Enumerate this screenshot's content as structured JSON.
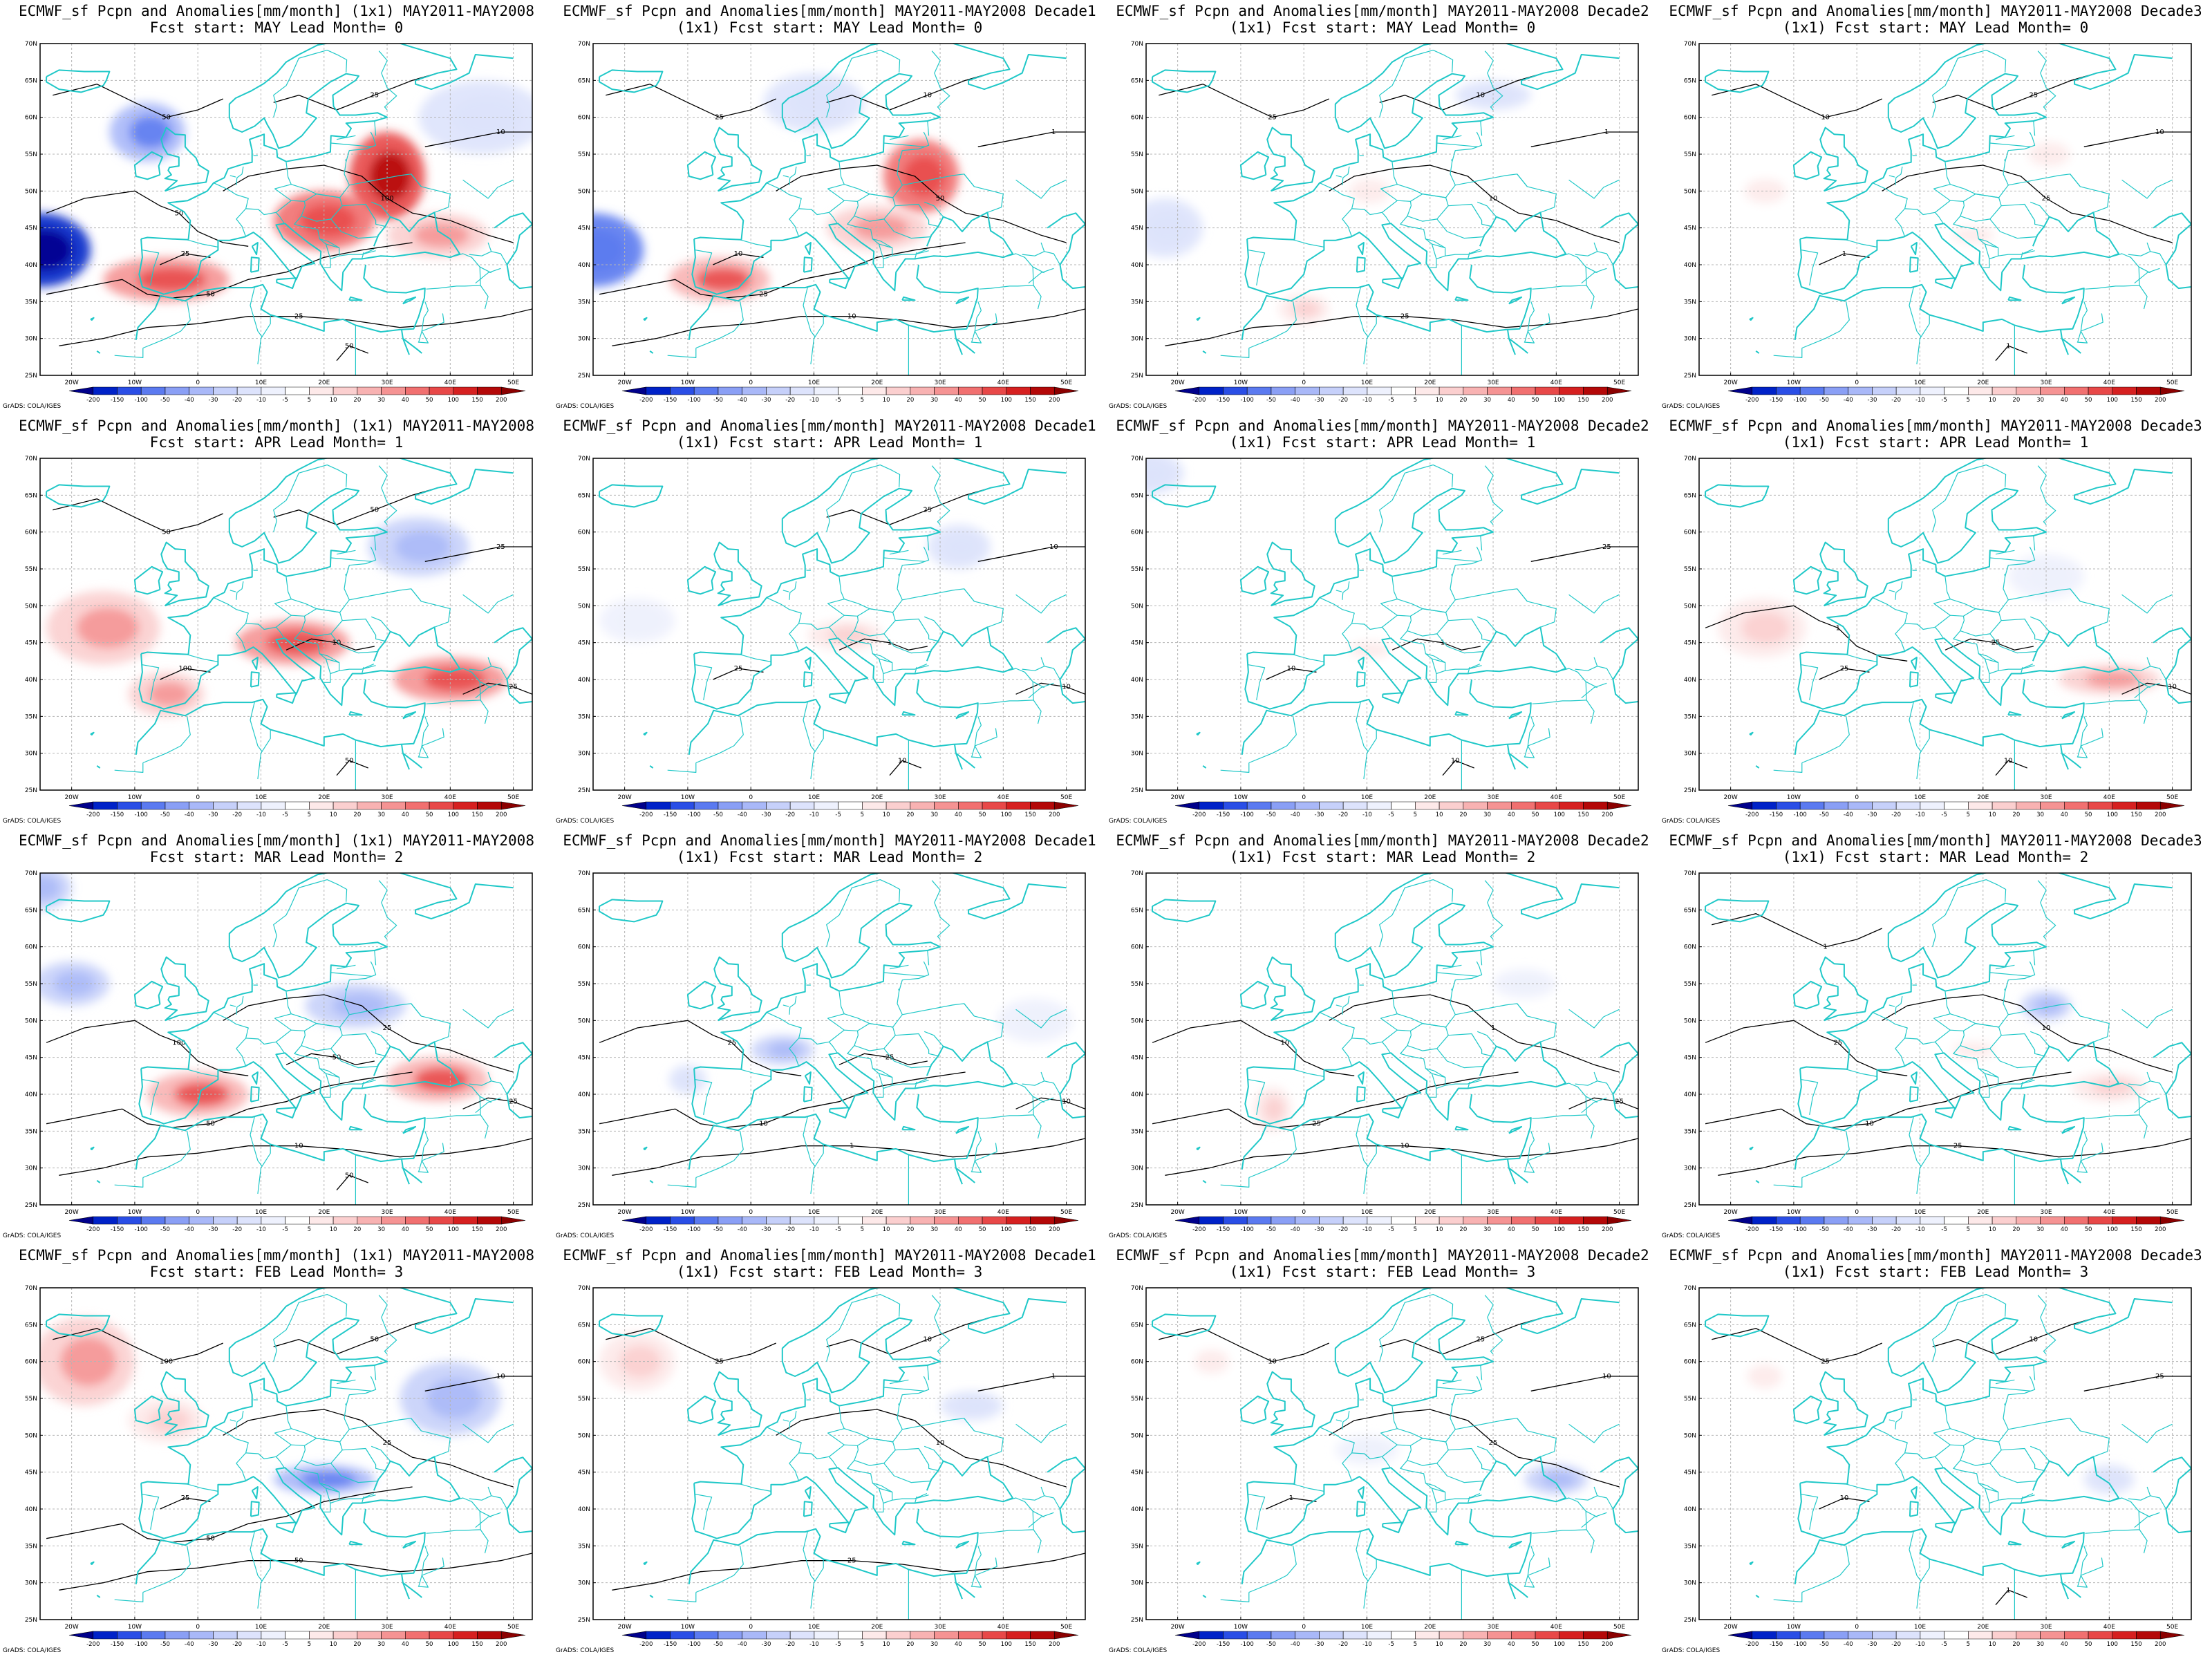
{
  "colorbar": {
    "labels": [
      "-200",
      "-150",
      "-100",
      "-50",
      "-40",
      "-30",
      "-20",
      "-10",
      "-5",
      "5",
      "10",
      "20",
      "30",
      "40",
      "50",
      "100",
      "150",
      "200"
    ],
    "colors": [
      "#00008b",
      "#0022c8",
      "#2a4ee6",
      "#5b7af0",
      "#8a9ff5",
      "#a9b8f8",
      "#c6d0fa",
      "#dde3fc",
      "#eef1fd",
      "#ffffff",
      "#fde9e9",
      "#fbcfcf",
      "#f8b2b2",
      "#f59393",
      "#f17070",
      "#e84848",
      "#d62020",
      "#b40808",
      "#8b0000"
    ]
  },
  "axes": {
    "lat_labels": [
      "70N",
      "65N",
      "60N",
      "55N",
      "50N",
      "45N",
      "40N",
      "35N",
      "30N",
      "25N"
    ],
    "lon_labels": [
      "20W",
      "10W",
      "0",
      "10E",
      "20E",
      "30E",
      "40E",
      "50E"
    ]
  },
  "credit": "GrADS: COLA/IGES",
  "colors": {
    "coast": "#20c8c8",
    "contour": "#000000",
    "grid": "#b4b4b4"
  },
  "panels": [
    {
      "line1": "ECMWF_sf Pcpn and Anomalies[mm/month] (1x1) MAY2011-MAY2008",
      "line2": "Fcst start: MAY  Lead Month= 0",
      "contours": [
        "50",
        "50",
        "25",
        "100",
        "50",
        "25",
        "10",
        "25",
        "50"
      ],
      "blobs": [
        {
          "lon": -25,
          "lat": 42,
          "rx": 8,
          "ry": 5,
          "v": -150
        },
        {
          "lon": -8,
          "lat": 58,
          "rx": 6,
          "ry": 4,
          "v": -30
        },
        {
          "lon": 30,
          "lat": 52,
          "rx": 6,
          "ry": 6,
          "v": 100
        },
        {
          "lon": 20,
          "lat": 46,
          "rx": 8,
          "ry": 4,
          "v": 50
        },
        {
          "lon": -5,
          "lat": 38,
          "rx": 10,
          "ry": 3,
          "v": 40
        },
        {
          "lon": 38,
          "lat": 44,
          "rx": 8,
          "ry": 3,
          "v": 20
        },
        {
          "lon": 45,
          "lat": 60,
          "rx": 10,
          "ry": 5,
          "v": -10
        }
      ]
    },
    {
      "line1": "ECMWF_sf Pcpn and Anomalies[mm/month] MAY2011-MAY2008 Decade1",
      "line2": "(1x1) Fcst start: MAY  Lead Month= 0",
      "contours": [
        "25",
        "10",
        "50",
        "25",
        "10",
        "1",
        "10"
      ],
      "blobs": [
        {
          "lon": -25,
          "lat": 42,
          "rx": 8,
          "ry": 5,
          "v": -50
        },
        {
          "lon": 27,
          "lat": 52,
          "rx": 6,
          "ry": 5,
          "v": 50
        },
        {
          "lon": -5,
          "lat": 38,
          "rx": 8,
          "ry": 3,
          "v": 30
        },
        {
          "lon": 20,
          "lat": 45,
          "rx": 8,
          "ry": 3,
          "v": 20
        },
        {
          "lon": 10,
          "lat": 62,
          "rx": 8,
          "ry": 4,
          "v": -10
        }
      ]
    },
    {
      "line1": "ECMWF_sf Pcpn and Anomalies[mm/month] MAY2011-MAY2008 Decade2",
      "line2": "(1x1) Fcst start: MAY  Lead Month= 0",
      "contours": [
        "25",
        "10",
        "25",
        "10",
        "1"
      ],
      "blobs": [
        {
          "lon": -22,
          "lat": 45,
          "rx": 6,
          "ry": 4,
          "v": -10
        },
        {
          "lon": 30,
          "lat": 63,
          "rx": 6,
          "ry": 2,
          "v": -10
        },
        {
          "lon": 0,
          "lat": 34,
          "rx": 4,
          "ry": 2,
          "v": 10
        },
        {
          "lon": 10,
          "lat": 50,
          "rx": 6,
          "ry": 3,
          "v": 5
        }
      ]
    },
    {
      "line1": "ECMWF_sf Pcpn and Anomalies[mm/month] MAY2011-MAY2008 Decade3",
      "line2": "(1x1) Fcst start: MAY  Lead Month= 0",
      "contours": [
        "25",
        "10",
        "25",
        "10",
        "1",
        "1"
      ],
      "blobs": [
        {
          "lon": -15,
          "lat": 50,
          "rx": 6,
          "ry": 3,
          "v": 5
        },
        {
          "lon": 30,
          "lat": 55,
          "rx": 6,
          "ry": 3,
          "v": 5
        },
        {
          "lon": 18,
          "lat": 44,
          "rx": 6,
          "ry": 2,
          "v": 5
        }
      ]
    },
    {
      "line1": "ECMWF_sf Pcpn and Anomalies[mm/month] (1x1) MAY2011-MAY2008",
      "line2": "Fcst start: APR  Lead Month= 1",
      "contours": [
        "50",
        "50",
        "25",
        "100",
        "50",
        "10",
        "25"
      ],
      "blobs": [
        {
          "lon": -15,
          "lat": 47,
          "rx": 9,
          "ry": 5,
          "v": 20
        },
        {
          "lon": 15,
          "lat": 45,
          "rx": 9,
          "ry": 3,
          "v": 40
        },
        {
          "lon": 40,
          "lat": 40,
          "rx": 9,
          "ry": 3,
          "v": 40
        },
        {
          "lon": 35,
          "lat": 58,
          "rx": 8,
          "ry": 4,
          "v": -20
        },
        {
          "lon": -5,
          "lat": 38,
          "rx": 6,
          "ry": 3,
          "v": 20
        }
      ]
    },
    {
      "line1": "ECMWF_sf Pcpn and Anomalies[mm/month] MAY2011-MAY2008 Decade1",
      "line2": "(1x1) Fcst start: APR  Lead Month= 1",
      "contours": [
        "25",
        "10",
        "25",
        "10",
        "1",
        "10"
      ],
      "blobs": [
        {
          "lon": -18,
          "lat": 48,
          "rx": 6,
          "ry": 3,
          "v": -5
        },
        {
          "lon": 33,
          "lat": 58,
          "rx": 5,
          "ry": 3,
          "v": -10
        },
        {
          "lon": 15,
          "lat": 46,
          "rx": 6,
          "ry": 2,
          "v": 10
        }
      ]
    },
    {
      "line1": "ECMWF_sf Pcpn and Anomalies[mm/month] MAY2011-MAY2008 Decade2",
      "line2": "(1x1) Fcst start: APR  Lead Month= 1",
      "contours": [
        "25",
        "10",
        "10",
        "1"
      ],
      "blobs": [
        {
          "lon": -25,
          "lat": 68,
          "rx": 6,
          "ry": 3,
          "v": -10
        },
        {
          "lon": 10,
          "lat": 44,
          "rx": 6,
          "ry": 2,
          "v": 5
        }
      ]
    },
    {
      "line1": "ECMWF_sf Pcpn and Anomalies[mm/month] MAY2011-MAY2008 Decade3",
      "line2": "(1x1) Fcst start: APR  Lead Month= 1",
      "contours": [
        "25",
        "10",
        "25",
        "10",
        "1"
      ],
      "blobs": [
        {
          "lon": -15,
          "lat": 47,
          "rx": 7,
          "ry": 4,
          "v": 10
        },
        {
          "lon": 40,
          "lat": 40,
          "rx": 8,
          "ry": 2,
          "v": 20
        },
        {
          "lon": 30,
          "lat": 54,
          "rx": 6,
          "ry": 3,
          "v": -5
        }
      ]
    },
    {
      "line1": "ECMWF_sf Pcpn and Anomalies[mm/month] (1x1) MAY2011-MAY2008",
      "line2": "Fcst start: MAR  Lead Month= 2",
      "contours": [
        "50",
        "50",
        "25",
        "100",
        "50",
        "10",
        "25"
      ],
      "blobs": [
        {
          "lon": -20,
          "lat": 55,
          "rx": 6,
          "ry": 3,
          "v": -20
        },
        {
          "lon": 25,
          "lat": 52,
          "rx": 8,
          "ry": 3,
          "v": -20
        },
        {
          "lon": 0,
          "lat": 40,
          "rx": 8,
          "ry": 3,
          "v": 30
        },
        {
          "lon": 38,
          "lat": 42,
          "rx": 8,
          "ry": 3,
          "v": 30
        },
        {
          "lon": -25,
          "lat": 68,
          "rx": 5,
          "ry": 3,
          "v": -20
        }
      ]
    },
    {
      "line1": "ECMWF_sf Pcpn and Anomalies[mm/month] MAY2011-MAY2008 Decade1",
      "line2": "(1x1) Fcst start: MAR  Lead Month= 2",
      "contours": [
        "25",
        "10",
        "25",
        "10",
        "1"
      ],
      "blobs": [
        {
          "lon": 5,
          "lat": 46,
          "rx": 5,
          "ry": 2,
          "v": -20
        },
        {
          "lon": -10,
          "lat": 42,
          "rx": 3,
          "ry": 2,
          "v": -10
        },
        {
          "lon": 45,
          "lat": 50,
          "rx": 6,
          "ry": 3,
          "v": -5
        }
      ]
    },
    {
      "line1": "ECMWF_sf Pcpn and Anomalies[mm/month] MAY2011-MAY2008 Decade2",
      "line2": "(1x1) Fcst start: MAR  Lead Month= 2",
      "contours": [
        "25",
        "10",
        "25",
        "10",
        "1"
      ],
      "blobs": [
        {
          "lon": -5,
          "lat": 38,
          "rx": 3,
          "ry": 3,
          "v": 10
        },
        {
          "lon": 35,
          "lat": 55,
          "rx": 5,
          "ry": 2,
          "v": -5
        }
      ]
    },
    {
      "line1": "ECMWF_sf Pcpn and Anomalies[mm/month] MAY2011-MAY2008 Decade3",
      "line2": "(1x1) Fcst start: MAR  Lead Month= 2",
      "contours": [
        "25",
        "10",
        "25",
        "10",
        "1"
      ],
      "blobs": [
        {
          "lon": 30,
          "lat": 52,
          "rx": 4,
          "ry": 2,
          "v": -20
        },
        {
          "lon": 40,
          "lat": 41,
          "rx": 6,
          "ry": 2,
          "v": 10
        },
        {
          "lon": 18,
          "lat": 46,
          "rx": 6,
          "ry": 2,
          "v": 5
        }
      ]
    },
    {
      "line1": "ECMWF_sf Pcpn and Anomalies[mm/month] (1x1) MAY2011-MAY2008",
      "line2": "Fcst start: FEB  Lead Month= 3",
      "contours": [
        "50",
        "50",
        "25",
        "100",
        "50",
        "10",
        "25"
      ],
      "blobs": [
        {
          "lon": -18,
          "lat": 60,
          "rx": 8,
          "ry": 6,
          "v": 20
        },
        {
          "lon": 20,
          "lat": 44,
          "rx": 8,
          "ry": 2,
          "v": -30
        },
        {
          "lon": 40,
          "lat": 55,
          "rx": 8,
          "ry": 5,
          "v": -20
        },
        {
          "lon": -5,
          "lat": 52,
          "rx": 6,
          "ry": 3,
          "v": 10
        }
      ]
    },
    {
      "line1": "ECMWF_sf Pcpn and Anomalies[mm/month] MAY2011-MAY2008 Decade1",
      "line2": "(1x1) Fcst start: FEB  Lead Month= 3",
      "contours": [
        "25",
        "10",
        "25",
        "10",
        "1"
      ],
      "blobs": [
        {
          "lon": -18,
          "lat": 60,
          "rx": 6,
          "ry": 4,
          "v": 10
        },
        {
          "lon": 35,
          "lat": 54,
          "rx": 5,
          "ry": 2,
          "v": -10
        }
      ]
    },
    {
      "line1": "ECMWF_sf Pcpn and Anomalies[mm/month] MAY2011-MAY2008 Decade2",
      "line2": "(1x1) Fcst start: FEB  Lead Month= 3",
      "contours": [
        "25",
        "10",
        "25",
        "10",
        "1"
      ],
      "blobs": [
        {
          "lon": -15,
          "lat": 60,
          "rx": 5,
          "ry": 3,
          "v": 5
        },
        {
          "lon": 40,
          "lat": 44,
          "rx": 5,
          "ry": 2,
          "v": -20
        },
        {
          "lon": 10,
          "lat": 48,
          "rx": 5,
          "ry": 2,
          "v": -5
        }
      ]
    },
    {
      "line1": "ECMWF_sf Pcpn and Anomalies[mm/month] MAY2011-MAY2008 Decade3",
      "line2": "(1x1) Fcst start: FEB  Lead Month= 3",
      "contours": [
        "25",
        "10",
        "25",
        "10",
        "1"
      ],
      "blobs": [
        {
          "lon": 40,
          "lat": 44,
          "rx": 4,
          "ry": 2,
          "v": -10
        },
        {
          "lon": -15,
          "lat": 58,
          "rx": 5,
          "ry": 3,
          "v": 5
        }
      ]
    }
  ]
}
